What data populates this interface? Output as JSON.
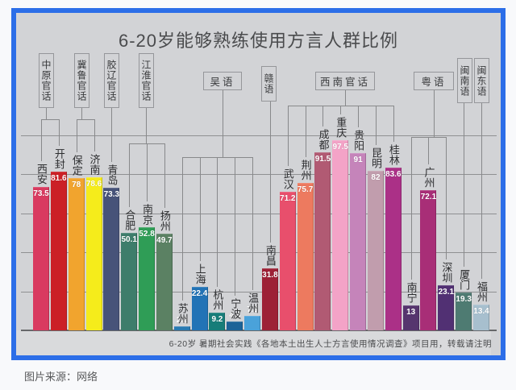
{
  "page": {
    "caption": "图片来源：网络"
  },
  "chart": {
    "title": "6-20岁能够熟练使用方言人群比例",
    "note": "6-20岁 暑期社会实践《各地本土出生人士方言使用情况调查》项目用，转载请注明",
    "frame_color": "#2c6ee8",
    "background_color": "#d2d3d6"
  },
  "chart_data": {
    "type": "bar",
    "title": "6-20岁能够熟练使用方言人群比例",
    "unit": "%",
    "ylim": [
      0,
      100
    ],
    "grid": true,
    "legend": false,
    "note": "6-20岁 暑期社会实践《各地本土出生人士方言使用情况调查》项目用，转载请注明",
    "groups": [
      {
        "label": "中原官话",
        "cities": [
          0,
          1
        ]
      },
      {
        "label": "冀鲁官话",
        "cities": [
          2,
          3
        ]
      },
      {
        "label": "胶辽官话",
        "cities": [
          4
        ]
      },
      {
        "label": "江淮官话",
        "cities": [
          5,
          6,
          7
        ]
      },
      {
        "label": "吴语",
        "cities": [
          8,
          9,
          10,
          11,
          12
        ]
      },
      {
        "label": "赣语",
        "cities": [
          13
        ]
      },
      {
        "label": "西南官话",
        "cities": [
          14,
          15,
          16,
          17,
          18,
          19,
          20
        ]
      },
      {
        "label": "粤语",
        "cities": [
          21,
          22,
          23
        ]
      },
      {
        "label": "闽南语",
        "cities": [
          24
        ]
      },
      {
        "label": "闽东语",
        "cities": [
          25
        ]
      }
    ],
    "cities": [
      {
        "name": "西安",
        "value": 73.5,
        "color": "#d93a60"
      },
      {
        "name": "开封",
        "value": 81.6,
        "color": "#cb2026"
      },
      {
        "name": "保定",
        "value": 78,
        "color": "#f1a42e"
      },
      {
        "name": "济南",
        "value": 78.6,
        "color": "#f5ec1b"
      },
      {
        "name": "青岛",
        "value": 73.3,
        "color": "#475379"
      },
      {
        "name": "合肥",
        "value": 50.1,
        "color": "#3e7d6b"
      },
      {
        "name": "南京",
        "value": 52.8,
        "color": "#2f9d56"
      },
      {
        "name": "扬州",
        "value": 49.7,
        "color": "#5b8163"
      },
      {
        "name": "苏州",
        "value": 2.2,
        "color": "#2a7ab2"
      },
      {
        "name": "上海",
        "value": 22.4,
        "color": "#2273b6"
      },
      {
        "name": "杭州",
        "value": 9.2,
        "color": "#177d79"
      },
      {
        "name": "宁波",
        "value": 4.6,
        "color": "#1d6397"
      },
      {
        "name": "温州",
        "value": 7.3,
        "color": "#4aa2da"
      },
      {
        "name": "南昌",
        "value": 31.8,
        "color": "#9d2136"
      },
      {
        "name": "武汉",
        "value": 71.2,
        "color": "#e84f6c"
      },
      {
        "name": "荆州",
        "value": 75.7,
        "color": "#ed7a5f"
      },
      {
        "name": "成都",
        "value": 91.5,
        "color": "#b15a73"
      },
      {
        "name": "重庆",
        "value": 97.5,
        "color": "#f3a3c7"
      },
      {
        "name": "贵阳",
        "value": 91,
        "color": "#c584ba"
      },
      {
        "name": "昆明",
        "value": 82,
        "color": "#c19dad"
      },
      {
        "name": "桂林",
        "value": 83.6,
        "color": "#ab3087"
      },
      {
        "name": "南宁",
        "value": 13,
        "color": "#56356e"
      },
      {
        "name": "广州",
        "value": 72.1,
        "color": "#a82e77"
      },
      {
        "name": "深圳",
        "value": 23.1,
        "color": "#513073"
      },
      {
        "name": "厦门",
        "value": 19.3,
        "color": "#4e7b72"
      },
      {
        "name": "福州",
        "value": 13.4,
        "color": "#a7bfce"
      }
    ]
  }
}
